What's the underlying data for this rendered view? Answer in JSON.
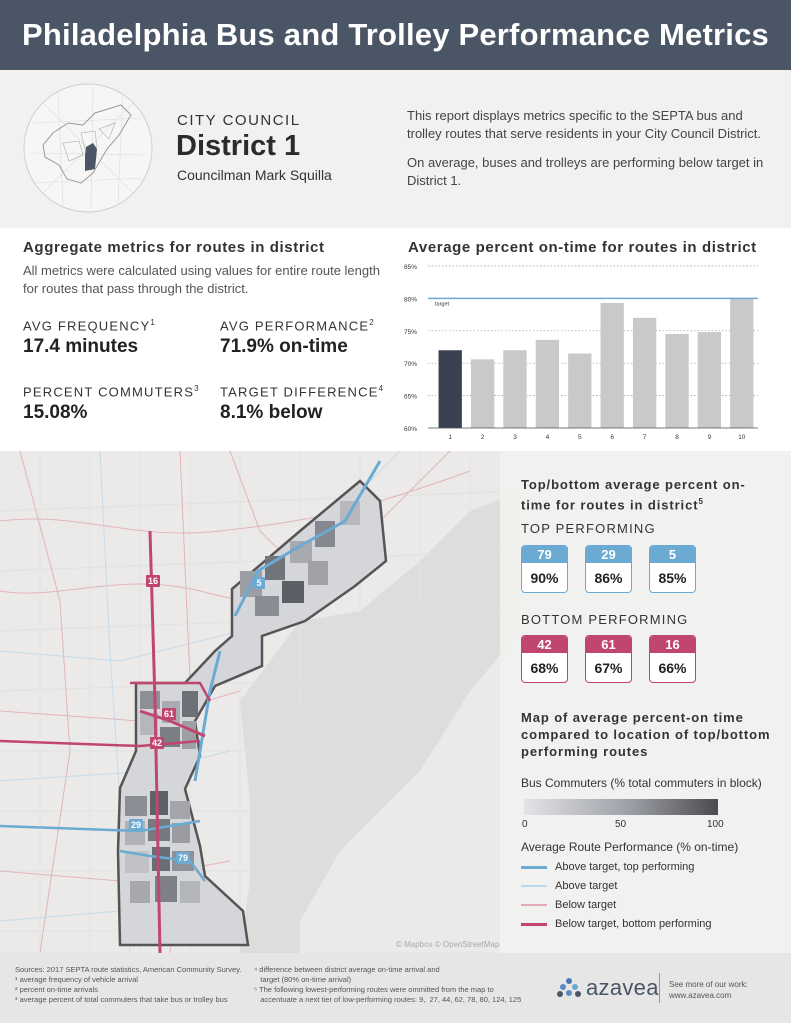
{
  "header": {
    "title": "Philadelphia Bus and Trolley Performance Metrics"
  },
  "intro": {
    "council_label": "CITY COUNCIL",
    "district": "District 1",
    "councilman": "Councilman Mark Squilla",
    "paragraphs": [
      "This report displays metrics specific to the SEPTA bus and trolley routes that serve residents in your City Council District.",
      "On average, buses and trolleys are performing below target in District 1."
    ]
  },
  "aggregate": {
    "heading": "Aggregate metrics for routes in district",
    "description": "All metrics were calculated using values for entire route length for routes that pass through the district.",
    "metrics": [
      {
        "label": "AVG FREQUENCY",
        "sup": "1",
        "value": "17.4 minutes"
      },
      {
        "label": "AVG PERFORMANCE",
        "sup": "2",
        "value": "71.9% on-time"
      },
      {
        "label": "PERCENT COMMUTERS",
        "sup": "3",
        "value": "15.08%"
      },
      {
        "label": "TARGET DIFFERENCE",
        "sup": "4",
        "value": "8.1% below"
      }
    ]
  },
  "chart_data": {
    "type": "bar",
    "title": "Average percent on-time for routes in district",
    "categories": [
      "1",
      "2",
      "3",
      "4",
      "5",
      "6",
      "7",
      "8",
      "9",
      "10"
    ],
    "values": [
      72.0,
      70.6,
      72.0,
      73.6,
      71.5,
      79.3,
      77.0,
      74.5,
      74.8,
      80.0
    ],
    "ylim": [
      60,
      85
    ],
    "yticks": [
      60,
      65,
      70,
      75,
      80,
      85
    ],
    "ytick_labels": [
      "60%",
      "65%",
      "70%",
      "75%",
      "80%",
      "85%"
    ],
    "target": 80,
    "target_label": "target",
    "highlight_index": 0,
    "colors": {
      "highlight": "#3a4150",
      "bar": "#c8c9cb",
      "target": "#6aaad3"
    },
    "grid": true,
    "xlabel": "",
    "ylabel": ""
  },
  "panel": {
    "topbottom_heading": "Top/bottom average percent on-time for routes in district",
    "topbottom_sup": "5",
    "top_heading": "TOP PERFORMING",
    "top": [
      {
        "route": "79",
        "pct": "90%"
      },
      {
        "route": "29",
        "pct": "86%"
      },
      {
        "route": "5",
        "pct": "85%"
      }
    ],
    "bottom_heading": "BOTTOM PERFORMING",
    "bottom": [
      {
        "route": "42",
        "pct": "68%"
      },
      {
        "route": "61",
        "pct": "67%"
      },
      {
        "route": "16",
        "pct": "66%"
      }
    ],
    "map_heading": "Map of average percent-on time compared to location of top/bottom performing routes",
    "commuters_heading": "Bus Commuters (% total commuters in block)",
    "gradient_ticks": [
      "0",
      "50",
      "100"
    ],
    "performance_heading": "Average Route Performance (% on-time)",
    "legend": [
      {
        "label": "Above target, top performing",
        "color": "#6aaad3",
        "width": 3
      },
      {
        "label": "Above target",
        "color": "#bcd7ea",
        "width": 2
      },
      {
        "label": "Below target",
        "color": "#e6a9b9",
        "width": 2
      },
      {
        "label": "Below target, bottom performing",
        "color": "#c0466f",
        "width": 3
      }
    ]
  },
  "map": {
    "credit": "© Mapbox © OpenStreetMap",
    "route_labels": [
      "16",
      "5",
      "61",
      "42",
      "29",
      "79"
    ]
  },
  "footer": {
    "left": [
      "Sources: 2017 SEPTA route statistics, American Community Survey.",
      "¹ average frequency of vehicle arrival",
      "² percent on-time arrivals",
      "³ average percent of total commuters that take bus or trolley bus"
    ],
    "middle": [
      "⁴ difference between district average on-time arrival and",
      "   target (80% on-time arrival)",
      "⁵ The following lowest-performing routes were ommitted from the map to",
      "   accentuate a next tier of low-performing routes: 9,  27, 44, 62, 78, 80, 124, 125"
    ],
    "brand": "azavea",
    "right": [
      "See more of our work:",
      "www.azavea.com"
    ]
  }
}
